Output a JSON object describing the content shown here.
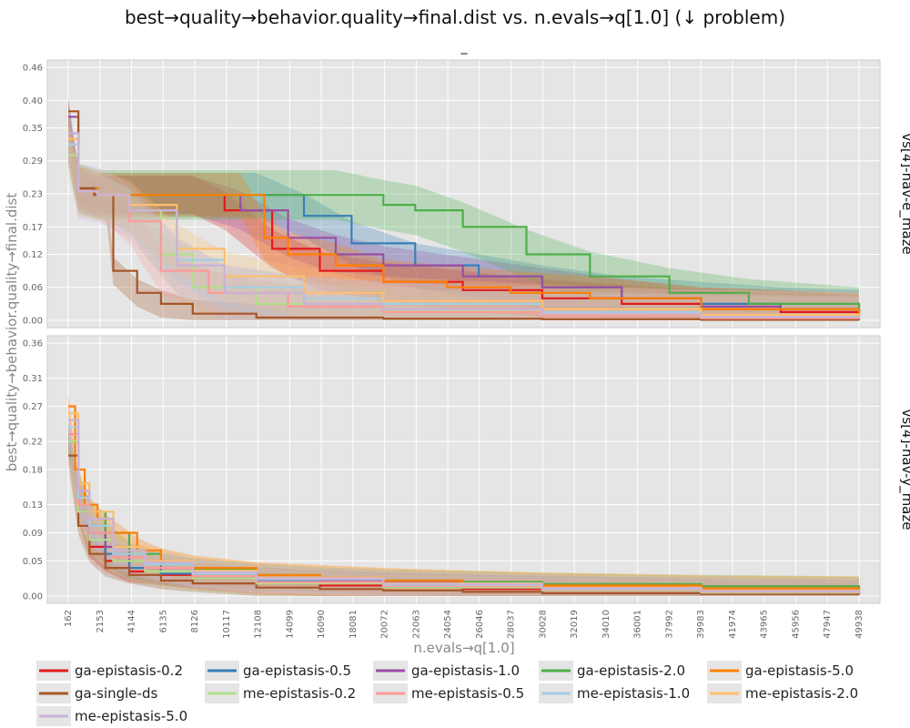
{
  "chart_data": {
    "type": "line",
    "title": "best→quality→behavior.quality→final.dist vs. n.evals→q[1.0] (↓ problem)",
    "subtitle": "_",
    "xlabel": "n.evals→q[1.0]",
    "ylabel": "best→quality→behavior.quality→final.dist",
    "x_ticks": [
      "162",
      "2153",
      "4144",
      "6135",
      "8126",
      "10117",
      "12108",
      "14099",
      "16090",
      "18081",
      "20072",
      "22063",
      "24054",
      "26046",
      "28037",
      "30028",
      "32019",
      "34010",
      "36001",
      "37992",
      "39983",
      "41974",
      "43965",
      "45956",
      "47947",
      "49938"
    ],
    "xlim": [
      162,
      49938
    ],
    "grid": true,
    "legend_position": "bottom",
    "legend": [
      {
        "name": "ga-epistasis-0.2",
        "color": "#e41a1c"
      },
      {
        "name": "ga-epistasis-0.5",
        "color": "#377eb8"
      },
      {
        "name": "ga-epistasis-1.0",
        "color": "#984ea3"
      },
      {
        "name": "ga-epistasis-2.0",
        "color": "#4daf4a"
      },
      {
        "name": "ga-epistasis-5.0",
        "color": "#ff7f00"
      },
      {
        "name": "ga-single-ds",
        "color": "#a65628"
      },
      {
        "name": "me-epistasis-0.2",
        "color": "#b2df8a"
      },
      {
        "name": "me-epistasis-0.5",
        "color": "#fb9a99"
      },
      {
        "name": "me-epistasis-1.0",
        "color": "#a6cee3"
      },
      {
        "name": "me-epistasis-2.0",
        "color": "#fdbf6f"
      },
      {
        "name": "me-epistasis-5.0",
        "color": "#cab2d6"
      }
    ],
    "panels": [
      {
        "label": "vs[4]-nav-e_maze",
        "y_ticks": [
          "0.46",
          "0.40",
          "0.35",
          "0.29",
          "0.23",
          "0.17",
          "0.12",
          "0.06",
          "0.00"
        ],
        "ylim": [
          0,
          0.46
        ],
        "series": [
          {
            "name": "ga-epistasis-0.2",
            "x": [
              162,
              800,
              2000,
              5000,
              8000,
              10000,
              13000,
              16000,
              20000,
              25000,
              30000,
              35000,
              40000,
              45000,
              49938
            ],
            "y": [
              0.33,
              0.24,
              0.228,
              0.228,
              0.228,
              0.2,
              0.13,
              0.09,
              0.07,
              0.055,
              0.04,
              0.03,
              0.02,
              0.015,
              0.01
            ],
            "band": 0.035
          },
          {
            "name": "ga-epistasis-0.5",
            "x": [
              162,
              800,
              2000,
              5000,
              8000,
              12000,
              15000,
              18000,
              22000,
              26000,
              30000,
              35000,
              40000,
              45000,
              49938
            ],
            "y": [
              0.34,
              0.24,
              0.228,
              0.228,
              0.228,
              0.228,
              0.19,
              0.14,
              0.1,
              0.08,
              0.06,
              0.04,
              0.03,
              0.02,
              0.015
            ],
            "band": 0.04
          },
          {
            "name": "ga-epistasis-1.0",
            "x": [
              162,
              800,
              2000,
              5000,
              8000,
              11000,
              14000,
              17000,
              20000,
              25000,
              30000,
              35000,
              40000,
              45000,
              49938
            ],
            "y": [
              0.37,
              0.24,
              0.228,
              0.228,
              0.228,
              0.2,
              0.15,
              0.12,
              0.1,
              0.08,
              0.06,
              0.04,
              0.025,
              0.02,
              0.012
            ],
            "band": 0.035
          },
          {
            "name": "ga-epistasis-2.0",
            "x": [
              162,
              800,
              2000,
              6000,
              10000,
              14000,
              17000,
              20000,
              22000,
              25000,
              29000,
              33000,
              38000,
              43000,
              49938
            ],
            "y": [
              0.33,
              0.24,
              0.228,
              0.228,
              0.228,
              0.228,
              0.228,
              0.21,
              0.2,
              0.17,
              0.12,
              0.08,
              0.05,
              0.03,
              0.015
            ],
            "band": 0.045
          },
          {
            "name": "ga-epistasis-5.0",
            "x": [
              162,
              800,
              2000,
              6000,
              9000,
              11000,
              12500,
              14000,
              17000,
              20000,
              24000,
              28000,
              33000,
              40000,
              49938
            ],
            "y": [
              0.33,
              0.24,
              0.228,
              0.228,
              0.228,
              0.228,
              0.15,
              0.12,
              0.1,
              0.07,
              0.06,
              0.05,
              0.04,
              0.02,
              0.01
            ],
            "band": 0.04
          },
          {
            "name": "ga-single-ds",
            "x": [
              162,
              800,
              1800,
              2500,
              3000,
              4500,
              6000,
              8000,
              12000,
              20000,
              30000,
              40000,
              49938
            ],
            "y": [
              0.38,
              0.24,
              0.228,
              0.228,
              0.09,
              0.05,
              0.03,
              0.012,
              0.005,
              0.003,
              0.002,
              0.001,
              0.0
            ],
            "band": 0.025
          },
          {
            "name": "me-epistasis-0.2",
            "x": [
              162,
              800,
              2000,
              4000,
              6000,
              8000,
              12000,
              20000,
              30000,
              40000,
              49938
            ],
            "y": [
              0.3,
              0.235,
              0.228,
              0.2,
              0.12,
              0.06,
              0.03,
              0.018,
              0.01,
              0.006,
              0.003
            ],
            "band": 0.04
          },
          {
            "name": "me-epistasis-0.5",
            "x": [
              162,
              800,
              2000,
              4000,
              6000,
              9000,
              14000,
              20000,
              30000,
              40000,
              49938
            ],
            "y": [
              0.32,
              0.235,
              0.228,
              0.18,
              0.09,
              0.05,
              0.025,
              0.015,
              0.008,
              0.004,
              0.002
            ],
            "band": 0.04
          },
          {
            "name": "me-epistasis-1.0",
            "x": [
              162,
              800,
              2000,
              4000,
              7000,
              10000,
              15000,
              20000,
              30000,
              40000,
              49938
            ],
            "y": [
              0.32,
              0.235,
              0.228,
              0.2,
              0.11,
              0.06,
              0.04,
              0.03,
              0.015,
              0.008,
              0.004
            ],
            "band": 0.04
          },
          {
            "name": "me-epistasis-2.0",
            "x": [
              162,
              800,
              2000,
              4000,
              7000,
              10000,
              15000,
              20000,
              30000,
              40000,
              49938
            ],
            "y": [
              0.33,
              0.235,
              0.228,
              0.21,
              0.13,
              0.08,
              0.05,
              0.035,
              0.02,
              0.01,
              0.005
            ],
            "band": 0.045
          },
          {
            "name": "me-epistasis-5.0",
            "x": [
              162,
              800,
              2000,
              4000,
              7000,
              10000,
              15000,
              20000,
              30000,
              40000,
              49938
            ],
            "y": [
              0.34,
              0.235,
              0.228,
              0.2,
              0.1,
              0.05,
              0.03,
              0.02,
              0.012,
              0.006,
              0.003
            ],
            "band": 0.05
          }
        ]
      },
      {
        "label": "vs[4]-nav-y_maze",
        "y_ticks": [
          "0.36",
          "0.31",
          "0.27",
          "0.22",
          "0.18",
          "0.13",
          "0.09",
          "0.05",
          "0.00"
        ],
        "ylim": [
          0,
          0.36
        ],
        "series": [
          {
            "name": "ga-epistasis-0.2",
            "x": [
              162,
              800,
              1500,
              2500,
              4000,
              6000,
              8000,
              12000,
              16000,
              20000,
              25000,
              30000,
              40000,
              49938
            ],
            "y": [
              0.22,
              0.12,
              0.07,
              0.05,
              0.035,
              0.03,
              0.025,
              0.018,
              0.015,
              0.012,
              0.01,
              0.008,
              0.005,
              0.004
            ],
            "band": 0.015
          },
          {
            "name": "ga-epistasis-0.5",
            "x": [
              162,
              800,
              1500,
              2500,
              4000,
              6000,
              8000,
              12000,
              16000,
              20000,
              25000,
              30000,
              40000,
              49938
            ],
            "y": [
              0.23,
              0.14,
              0.09,
              0.06,
              0.04,
              0.032,
              0.027,
              0.022,
              0.02,
              0.018,
              0.016,
              0.014,
              0.01,
              0.008
            ],
            "band": 0.015
          },
          {
            "name": "ga-epistasis-1.0",
            "x": [
              162,
              800,
              1500,
              2500,
              4000,
              6000,
              8000,
              12000,
              16000,
              20000,
              25000,
              30000,
              40000,
              49938
            ],
            "y": [
              0.23,
              0.15,
              0.1,
              0.07,
              0.05,
              0.04,
              0.032,
              0.026,
              0.022,
              0.019,
              0.016,
              0.013,
              0.009,
              0.007
            ],
            "band": 0.015
          },
          {
            "name": "ga-epistasis-2.0",
            "x": [
              162,
              800,
              1500,
              2500,
              4000,
              6000,
              8000,
              12000,
              16000,
              20000,
              25000,
              30000,
              40000,
              49938
            ],
            "y": [
              0.22,
              0.16,
              0.12,
              0.09,
              0.06,
              0.045,
              0.038,
              0.03,
              0.025,
              0.022,
              0.02,
              0.017,
              0.014,
              0.012
            ],
            "band": 0.016
          },
          {
            "name": "ga-epistasis-5.0",
            "x": [
              162,
              600,
              1200,
              2000,
              3000,
              4500,
              6000,
              8000,
              12000,
              16000,
              20000,
              25000,
              30000,
              40000,
              49938
            ],
            "y": [
              0.27,
              0.18,
              0.13,
              0.11,
              0.09,
              0.065,
              0.05,
              0.04,
              0.03,
              0.026,
              0.022,
              0.018,
              0.015,
              0.011,
              0.009
            ],
            "band": 0.018
          },
          {
            "name": "ga-single-ds",
            "x": [
              162,
              800,
              1500,
              2500,
              4000,
              6000,
              8000,
              12000,
              16000,
              20000,
              25000,
              30000,
              40000,
              49938
            ],
            "y": [
              0.2,
              0.1,
              0.06,
              0.04,
              0.03,
              0.022,
              0.018,
              0.012,
              0.01,
              0.008,
              0.006,
              0.004,
              0.003,
              0.002
            ],
            "band": 0.012
          },
          {
            "name": "me-epistasis-0.2",
            "x": [
              162,
              800,
              1500,
              3000,
              5000,
              8000,
              12000,
              20000,
              30000,
              40000,
              49938
            ],
            "y": [
              0.22,
              0.12,
              0.08,
              0.05,
              0.035,
              0.025,
              0.018,
              0.012,
              0.008,
              0.005,
              0.004
            ],
            "band": 0.018
          },
          {
            "name": "me-epistasis-0.5",
            "x": [
              162,
              800,
              1500,
              3000,
              5000,
              8000,
              12000,
              20000,
              30000,
              40000,
              49938
            ],
            "y": [
              0.23,
              0.13,
              0.09,
              0.055,
              0.04,
              0.028,
              0.02,
              0.014,
              0.009,
              0.006,
              0.004
            ],
            "band": 0.018
          },
          {
            "name": "me-epistasis-1.0",
            "x": [
              162,
              800,
              1500,
              3000,
              5000,
              8000,
              12000,
              20000,
              30000,
              40000,
              49938
            ],
            "y": [
              0.24,
              0.14,
              0.1,
              0.06,
              0.045,
              0.032,
              0.024,
              0.016,
              0.01,
              0.007,
              0.005
            ],
            "band": 0.02
          },
          {
            "name": "me-epistasis-2.0",
            "x": [
              162,
              800,
              1500,
              3000,
              5000,
              8000,
              12000,
              20000,
              30000,
              40000,
              49938
            ],
            "y": [
              0.26,
              0.16,
              0.12,
              0.07,
              0.05,
              0.036,
              0.026,
              0.018,
              0.012,
              0.008,
              0.006
            ],
            "band": 0.022
          },
          {
            "name": "me-epistasis-5.0",
            "x": [
              162,
              800,
              1500,
              3000,
              5000,
              8000,
              12000,
              20000,
              30000,
              40000,
              49938
            ],
            "y": [
              0.25,
              0.15,
              0.11,
              0.065,
              0.048,
              0.034,
              0.025,
              0.017,
              0.011,
              0.007,
              0.005
            ],
            "band": 0.02
          }
        ]
      }
    ]
  }
}
